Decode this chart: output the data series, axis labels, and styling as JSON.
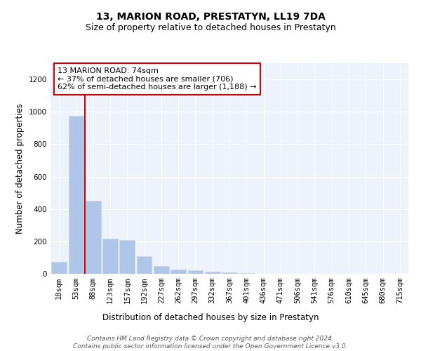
{
  "title": "13, MARION ROAD, PRESTATYN, LL19 7DA",
  "subtitle": "Size of property relative to detached houses in Prestatyn",
  "xlabel": "Distribution of detached houses by size in Prestatyn",
  "ylabel": "Number of detached properties",
  "bar_labels": [
    "18sqm",
    "53sqm",
    "88sqm",
    "123sqm",
    "157sqm",
    "192sqm",
    "227sqm",
    "262sqm",
    "297sqm",
    "332sqm",
    "367sqm",
    "401sqm",
    "436sqm",
    "471sqm",
    "506sqm",
    "541sqm",
    "576sqm",
    "610sqm",
    "645sqm",
    "680sqm",
    "715sqm"
  ],
  "bar_values": [
    75,
    975,
    450,
    215,
    210,
    110,
    47,
    25,
    20,
    13,
    8,
    3,
    2,
    1,
    1,
    0,
    0,
    0,
    0,
    0,
    0
  ],
  "bar_color": "#aec6e8",
  "bar_edge_color": "#c8d8ee",
  "background_color": "#eef2fa",
  "vline_x": 1.5,
  "annotation_text": "13 MARION ROAD: 74sqm\n← 37% of detached houses are smaller (706)\n62% of semi-detached houses are larger (1,188) →",
  "annotation_box_facecolor": "#ffffff",
  "annotation_box_edgecolor": "#cc0000",
  "vline_color": "#cc0000",
  "ylim": [
    0,
    1300
  ],
  "yticks": [
    0,
    200,
    400,
    600,
    800,
    1000,
    1200
  ],
  "footnote": "Contains HM Land Registry data © Crown copyright and database right 2024.\nContains public sector information licensed under the Open Government Licence v3.0.",
  "title_fontsize": 10,
  "subtitle_fontsize": 9,
  "xlabel_fontsize": 8.5,
  "ylabel_fontsize": 8.5,
  "tick_fontsize": 7.5,
  "annotation_fontsize": 8,
  "footnote_fontsize": 6.5
}
